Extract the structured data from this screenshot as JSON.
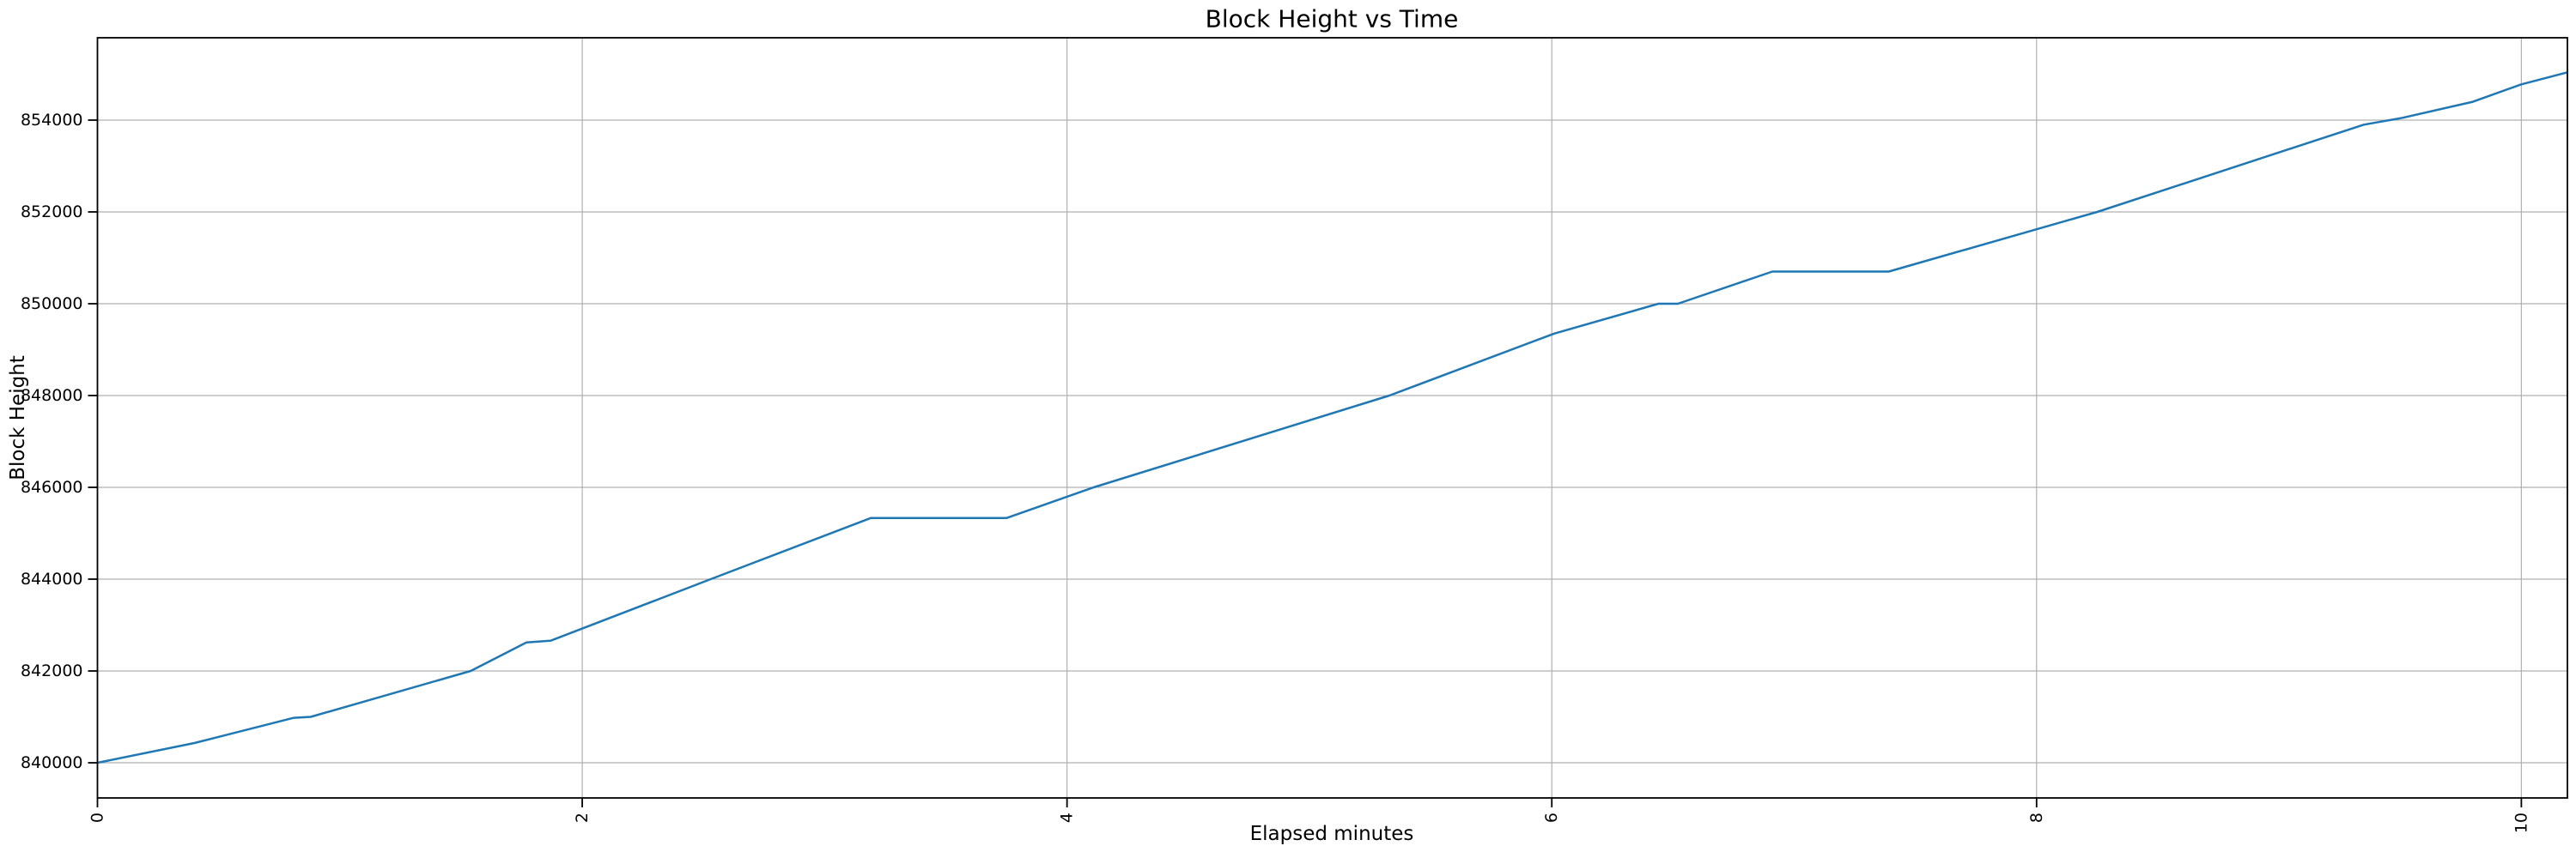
{
  "chart_data": {
    "type": "line",
    "title": "Block Height vs Time",
    "xlabel": "Elapsed minutes",
    "ylabel": "Block Height",
    "x": [
      0,
      0.4,
      0.81,
      0.88,
      1.54,
      1.77,
      1.87,
      2.53,
      3.19,
      3.75,
      4.11,
      5.33,
      6.01,
      6.44,
      6.52,
      6.91,
      7.39,
      8.25,
      9.35,
      9.51,
      9.8,
      10.0,
      10.19
    ],
    "y": [
      840000,
      840430,
      840980,
      841000,
      842000,
      842620,
      842660,
      844000,
      845330,
      845330,
      846000,
      848000,
      849350,
      850000,
      850000,
      850700,
      850700,
      852000,
      853900,
      854050,
      854400,
      854780,
      855040
    ],
    "xlim": [
      0,
      10.19
    ],
    "ylim": [
      839234,
      855794
    ],
    "xticks": [
      0,
      2,
      4,
      6,
      8,
      10
    ],
    "xtick_labels": [
      "0",
      "2",
      "4",
      "6",
      "8",
      "10"
    ],
    "xtick_rotation_deg": 90,
    "yticks": [
      840000,
      842000,
      844000,
      846000,
      848000,
      850000,
      852000,
      854000
    ],
    "ytick_labels": [
      "840000",
      "842000",
      "844000",
      "846000",
      "848000",
      "850000",
      "852000",
      "854000"
    ],
    "grid": true,
    "legend": "none",
    "line_color": "#1f77b4",
    "grid_color": "#b0b0b0",
    "spine_color": "#000000",
    "background_color": "#ffffff"
  }
}
